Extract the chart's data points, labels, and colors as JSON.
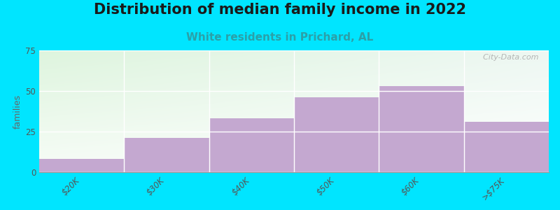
{
  "title": "Distribution of median family income in 2022",
  "subtitle": "White residents in Prichard, AL",
  "categories": [
    "$20K",
    "$30K",
    "$40K",
    "$50K",
    "$60K",
    ">$75K"
  ],
  "values": [
    8,
    21,
    33,
    46,
    53,
    31
  ],
  "bar_color": "#c4a8d0",
  "background_color": "#00e5ff",
  "ylabel": "families",
  "ylim": [
    0,
    75
  ],
  "yticks": [
    0,
    25,
    50,
    75
  ],
  "title_fontsize": 15,
  "subtitle_fontsize": 11,
  "tick_label_fontsize": 8.5,
  "ylabel_fontsize": 9,
  "bar_width": 1.0,
  "watermark": "  City-Data.com",
  "grad_topleft": [
    0.87,
    0.96,
    0.87,
    1.0
  ],
  "grad_topright": [
    0.93,
    0.97,
    0.95,
    1.0
  ],
  "grad_bottomleft": [
    0.97,
    0.99,
    0.97,
    1.0
  ],
  "grad_bottomright": [
    1.0,
    1.0,
    1.0,
    1.0
  ]
}
